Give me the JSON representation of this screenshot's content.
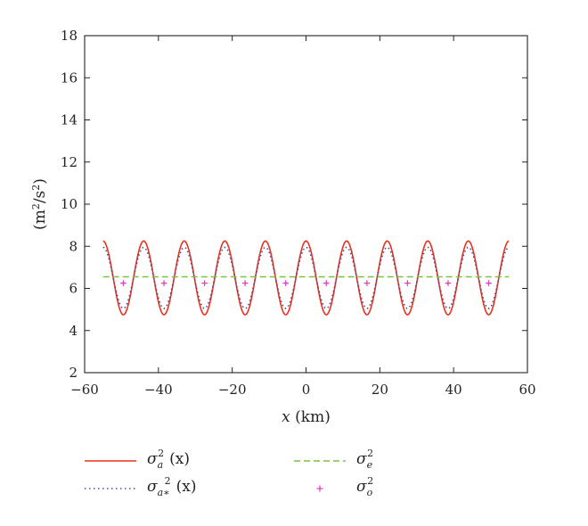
{
  "chart_data": {
    "type": "line",
    "xlabel": {
      "var": "x",
      "unit": " (km)"
    },
    "ylabel": {
      "prefix": "(m",
      "sup1": "2",
      "mid": "/s",
      "sup2": "2",
      "suffix": ")"
    },
    "xlim": [
      -60,
      60
    ],
    "ylim": [
      2,
      18
    ],
    "xticks": [
      -60,
      -40,
      -20,
      0,
      20,
      40,
      60
    ],
    "yticks": [
      2,
      4,
      6,
      8,
      10,
      12,
      14,
      16,
      18
    ],
    "xtick_labels": [
      "−60",
      "−40",
      "−20",
      "0",
      "20",
      "40",
      "60"
    ],
    "ytick_labels": [
      "2",
      "4",
      "6",
      "8",
      "10",
      "12",
      "14",
      "16",
      "18"
    ],
    "grid": false,
    "legend_position": "bottom",
    "series": [
      {
        "name": "σ_a^2 (x)",
        "label": {
          "sym": "σ",
          "sub": "a",
          "sup": "2",
          "arg": "(x)"
        },
        "style": "solid",
        "color": "#e8321e",
        "x_range": [
          -55,
          55
        ],
        "mean": 6.5,
        "amplitude": 1.75,
        "period": 11,
        "phase_peak_x": 0
      },
      {
        "name": "σ_a*^2 (x)",
        "label": {
          "sym": "σ",
          "sub": "a∗",
          "sup": "2",
          "arg": "(x)"
        },
        "style": "dotted",
        "color": "#4a4a9c",
        "x_range": [
          -55,
          55
        ],
        "mean": 6.5,
        "amplitude": 1.45,
        "period": 11,
        "phase_peak_x": 0
      },
      {
        "name": "σ_e^2",
        "label": {
          "sym": "σ",
          "sub": "e",
          "sup": "2",
          "arg": ""
        },
        "style": "dashed",
        "color": "#7cc242",
        "x": [
          -55,
          55
        ],
        "y": [
          6.55,
          6.55
        ]
      },
      {
        "name": "σ_o^2",
        "label": {
          "sym": "σ",
          "sub": "o",
          "sup": "2",
          "arg": ""
        },
        "style": "markers",
        "marker": "+",
        "color": "#e040c0",
        "x": [
          -49.5,
          -38.5,
          -27.5,
          -16.5,
          -5.5,
          5.5,
          16.5,
          27.5,
          38.5,
          49.5
        ],
        "y": [
          6.25,
          6.25,
          6.25,
          6.25,
          6.25,
          6.25,
          6.25,
          6.25,
          6.25,
          6.25
        ]
      }
    ]
  }
}
